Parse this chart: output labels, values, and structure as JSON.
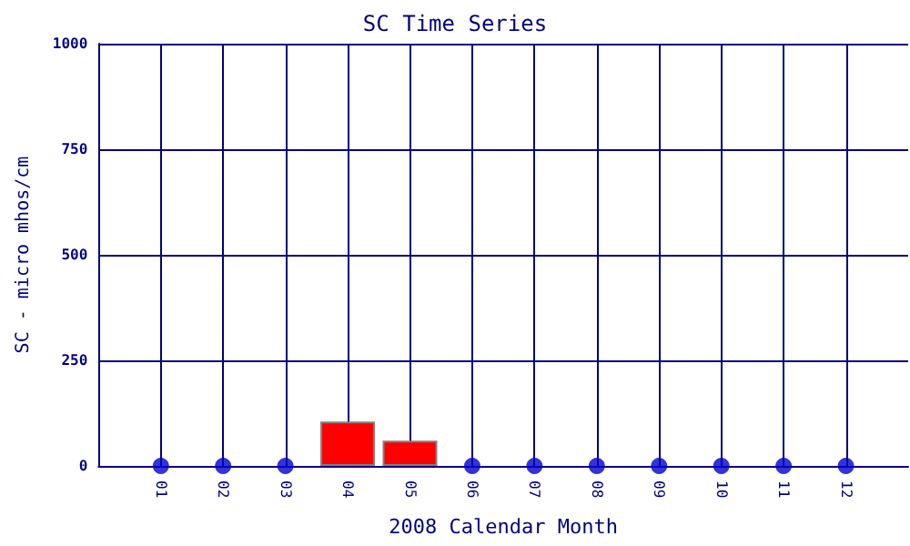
{
  "chart_data": {
    "type": "bar",
    "title": "SC Time Series",
    "xlabel": "2008 Calendar Month",
    "ylabel": "SC - micro mhos/cm",
    "categories": [
      "01",
      "02",
      "03",
      "04",
      "05",
      "06",
      "07",
      "08",
      "09",
      "10",
      "11",
      "12"
    ],
    "series": [
      {
        "color": "#ff0000",
        "values": [
          null,
          null,
          null,
          105,
          60,
          null,
          null,
          null,
          null,
          null,
          null,
          null
        ]
      },
      {
        "type": "scatter",
        "color": "#0000cc",
        "x": [
          "01",
          "02",
          "03",
          "06",
          "07",
          "08",
          "09",
          "10",
          "11",
          "12"
        ],
        "values": [
          0,
          0,
          0,
          0,
          0,
          0,
          0,
          0,
          0,
          0
        ]
      }
    ],
    "ylim": [
      0,
      1000
    ],
    "yticks": [
      0,
      250,
      500,
      750,
      1000
    ],
    "grid": true,
    "marker": "circle"
  }
}
